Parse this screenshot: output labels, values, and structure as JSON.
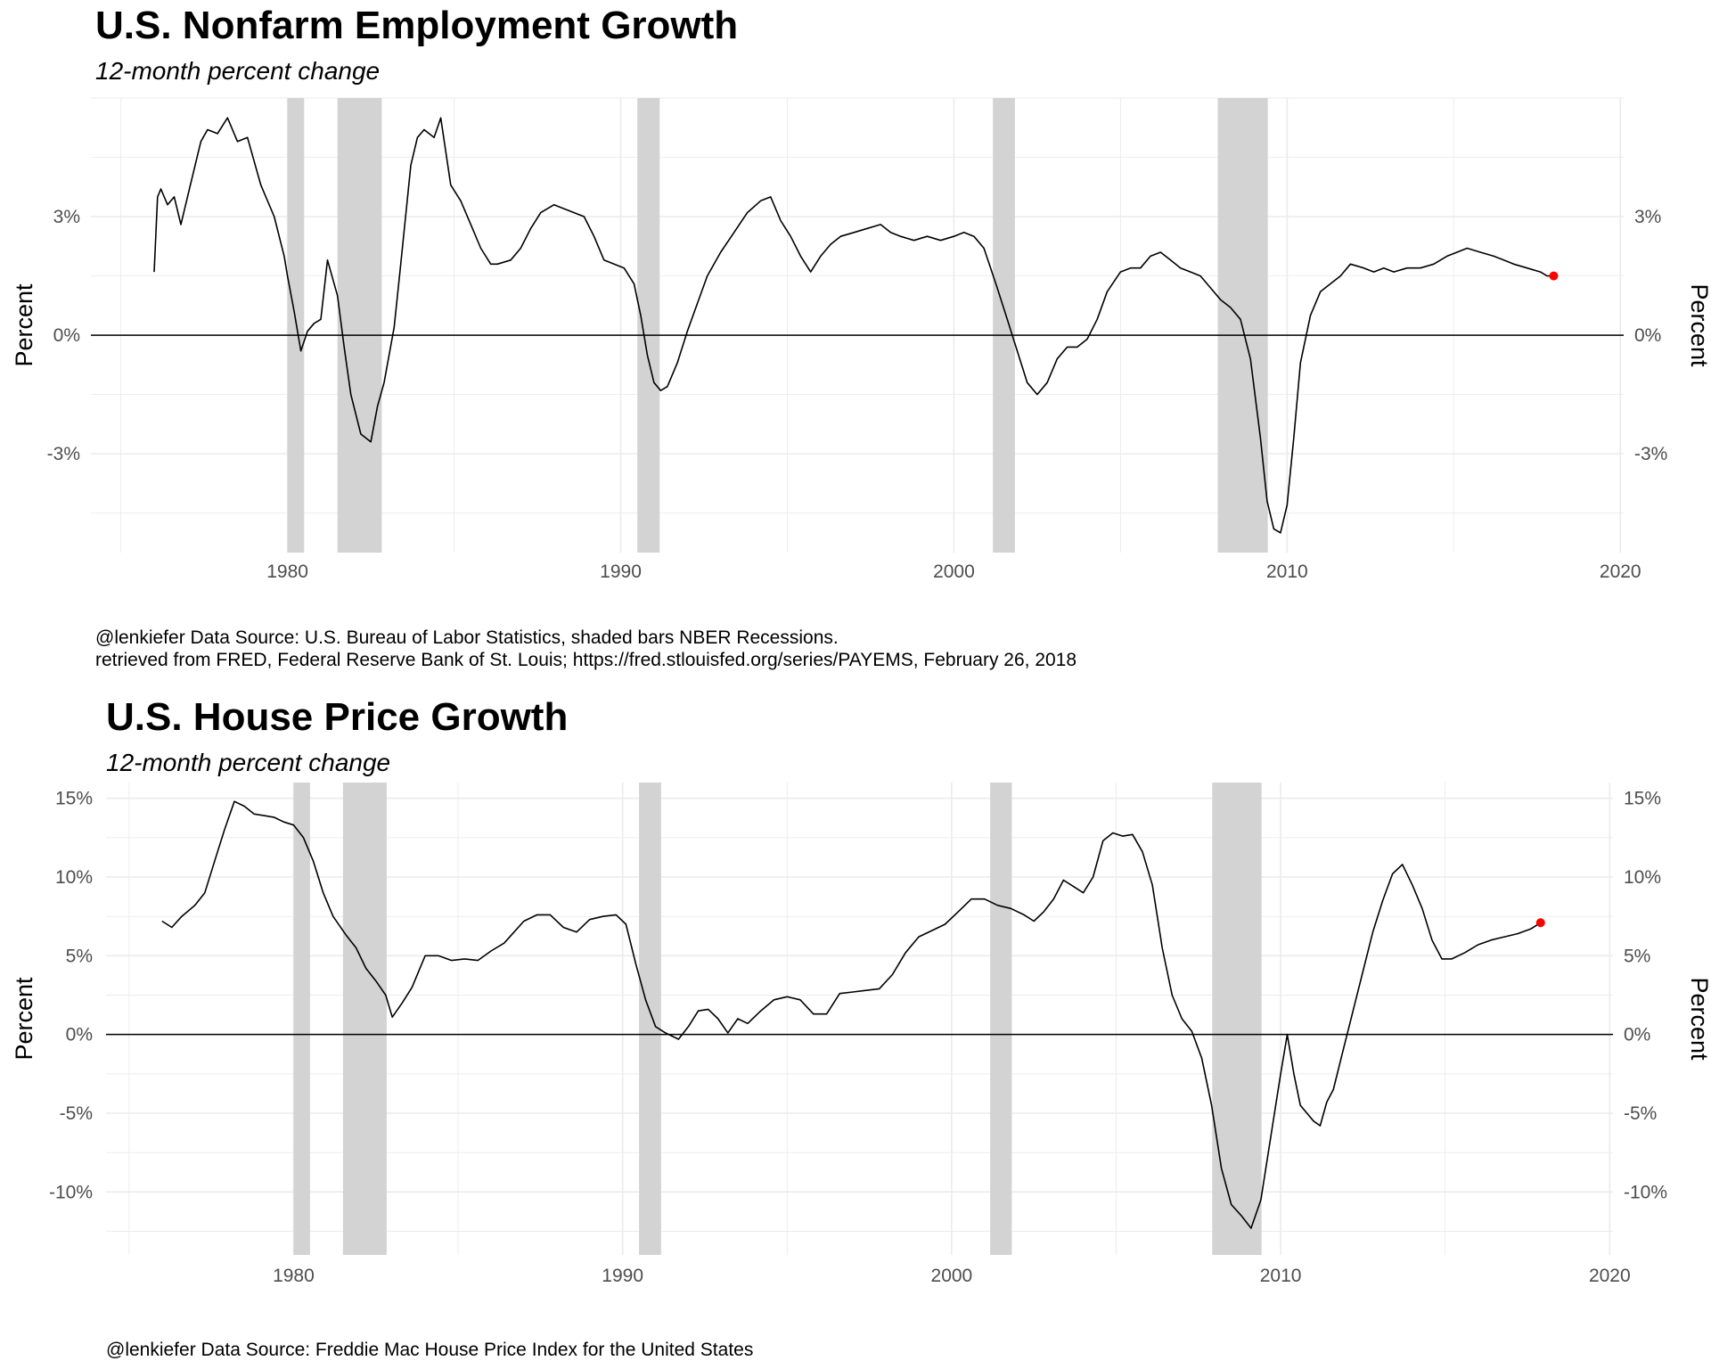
{
  "charts": [
    {
      "title": "U.S. Nonfarm Employment Growth",
      "subtitle": "12-month percent change",
      "ylabel_left": "Percent",
      "ylabel_right": "Percent",
      "caption_lines": [
        "@lenkiefer Data Source: U.S. Bureau of Labor Statistics, shaded bars NBER Recessions.",
        "retrieved from FRED, Federal Reserve Bank of St. Louis; https://fred.stlouisfed.org/series/PAYEMS, February 26, 2018"
      ]
    },
    {
      "title": "U.S. House Price Growth",
      "subtitle": "12-month percent change",
      "ylabel_left": "Percent",
      "ylabel_right": "Percent",
      "caption_lines": [
        "@lenkiefer Data Source: Freddie Mac House Price Index for the United States"
      ]
    }
  ],
  "colors": {
    "line": "#000000",
    "recession": "#d3d3d3",
    "last_point": "#ff0000",
    "grid": "#ebebeb",
    "zero_line": "#000000"
  },
  "chart_data": [
    {
      "type": "line",
      "title": "U.S. Nonfarm Employment Growth",
      "subtitle": "12-month percent change",
      "ylabel": "Percent",
      "x_ticks": [
        1980,
        1990,
        2000,
        2010,
        2020
      ],
      "x_tick_labels": [
        "1980",
        "1990",
        "2000",
        "2010",
        "2020"
      ],
      "y_ticks": [
        -3,
        0,
        3
      ],
      "y_tick_labels": [
        "-3%",
        "0%",
        "3%"
      ],
      "xlim": [
        1974.1,
        2020.1
      ],
      "ylim": [
        -5.5,
        6.0
      ],
      "axes_both_sides": true,
      "grid": true,
      "recessions": [
        [
          1980.0,
          1980.5
        ],
        [
          1981.5,
          1982.83
        ],
        [
          1990.5,
          1991.17
        ],
        [
          2001.17,
          2001.83
        ],
        [
          2007.92,
          2009.42
        ]
      ],
      "series": [
        {
          "x": [
            1976.0,
            1976.1,
            1976.2,
            1976.4,
            1976.6,
            1976.8,
            1977.0,
            1977.2,
            1977.4,
            1977.6,
            1977.9,
            1978.2,
            1978.5,
            1978.8,
            1979.2,
            1979.6,
            1979.9,
            1980.0,
            1980.2,
            1980.4,
            1980.6,
            1980.8,
            1981.0,
            1981.2,
            1981.5,
            1981.7,
            1981.9,
            1982.2,
            1982.5,
            1982.7,
            1982.9,
            1983.2,
            1983.4,
            1983.7,
            1983.9,
            1984.1,
            1984.4,
            1984.6,
            1984.9,
            1985.2,
            1985.5,
            1985.8,
            1986.1,
            1986.3,
            1986.7,
            1987.0,
            1987.3,
            1987.6,
            1988.0,
            1988.3,
            1988.6,
            1988.9,
            1989.2,
            1989.5,
            1989.8,
            1990.1,
            1990.4,
            1990.6,
            1990.8,
            1991.0,
            1991.2,
            1991.4,
            1991.7,
            1992.0,
            1992.3,
            1992.6,
            1993.0,
            1993.4,
            1993.8,
            1994.2,
            1994.5,
            1994.8,
            1995.1,
            1995.4,
            1995.7,
            1996.0,
            1996.3,
            1996.6,
            1997.0,
            1997.4,
            1997.8,
            1998.1,
            1998.4,
            1998.8,
            1999.2,
            1999.6,
            2000.0,
            2000.3,
            2000.6,
            2000.9,
            2001.1,
            2001.3,
            2001.6,
            2001.9,
            2002.2,
            2002.5,
            2002.8,
            2003.1,
            2003.4,
            2003.7,
            2004.0,
            2004.3,
            2004.6,
            2005.0,
            2005.3,
            2005.6,
            2005.9,
            2006.2,
            2006.5,
            2006.8,
            2007.1,
            2007.4,
            2007.7,
            2008.0,
            2008.3,
            2008.6,
            2008.9,
            2009.2,
            2009.4,
            2009.6,
            2009.8,
            2010.0,
            2010.2,
            2010.4,
            2010.7,
            2011.0,
            2011.3,
            2011.6,
            2011.9,
            2012.3,
            2012.6,
            2012.9,
            2013.2,
            2013.6,
            2014.0,
            2014.4,
            2014.8,
            2015.1,
            2015.4,
            2015.8,
            2016.2,
            2016.5,
            2016.8,
            2017.2,
            2017.6,
            2017.8,
            2018.0
          ],
          "values": [
            1.6,
            3.5,
            3.7,
            3.3,
            3.5,
            2.8,
            3.5,
            4.2,
            4.9,
            5.2,
            5.1,
            5.5,
            4.9,
            5.0,
            3.8,
            3.0,
            2.0,
            1.5,
            0.6,
            -0.4,
            0.1,
            0.3,
            0.4,
            1.9,
            1.0,
            -0.3,
            -1.5,
            -2.5,
            -2.7,
            -1.8,
            -1.2,
            0.2,
            1.8,
            4.3,
            5.0,
            5.2,
            5.0,
            5.5,
            3.8,
            3.4,
            2.8,
            2.2,
            1.8,
            1.8,
            1.9,
            2.2,
            2.7,
            3.1,
            3.3,
            3.2,
            3.1,
            3.0,
            2.5,
            1.9,
            1.8,
            1.7,
            1.3,
            0.5,
            -0.5,
            -1.2,
            -1.4,
            -1.3,
            -0.7,
            0.1,
            0.8,
            1.5,
            2.1,
            2.6,
            3.1,
            3.4,
            3.5,
            2.9,
            2.5,
            2.0,
            1.6,
            2.0,
            2.3,
            2.5,
            2.6,
            2.7,
            2.8,
            2.6,
            2.5,
            2.4,
            2.5,
            2.4,
            2.5,
            2.6,
            2.5,
            2.2,
            1.7,
            1.2,
            0.4,
            -0.4,
            -1.2,
            -1.5,
            -1.2,
            -0.6,
            -0.3,
            -0.3,
            -0.1,
            0.4,
            1.1,
            1.6,
            1.7,
            1.7,
            2.0,
            2.1,
            1.9,
            1.7,
            1.6,
            1.5,
            1.2,
            0.9,
            0.7,
            0.4,
            -0.6,
            -2.6,
            -4.2,
            -4.9,
            -5.0,
            -4.3,
            -2.6,
            -0.7,
            0.5,
            1.1,
            1.3,
            1.5,
            1.8,
            1.7,
            1.6,
            1.7,
            1.6,
            1.7,
            1.7,
            1.8,
            2.0,
            2.1,
            2.2,
            2.1,
            2.0,
            1.9,
            1.8,
            1.7,
            1.6,
            1.5,
            1.5
          ]
        }
      ],
      "last_point": {
        "x": 2018.0,
        "y": 1.5
      }
    },
    {
      "type": "line",
      "title": "U.S. House Price Growth",
      "subtitle": "12-month percent change",
      "ylabel": "Percent",
      "x_ticks": [
        1980,
        1990,
        2000,
        2010,
        2020
      ],
      "x_tick_labels": [
        "1980",
        "1990",
        "2000",
        "2010",
        "2020"
      ],
      "y_ticks": [
        -10,
        -5,
        0,
        5,
        10,
        15
      ],
      "y_tick_labels": [
        "-10%",
        "-5%",
        "0%",
        "5%",
        "10%",
        "15%"
      ],
      "xlim": [
        1974.3,
        2020.1
      ],
      "ylim": [
        -14.0,
        16.0
      ],
      "axes_both_sides": true,
      "grid": true,
      "recessions": [
        [
          1980.0,
          1980.5
        ],
        [
          1981.5,
          1982.83
        ],
        [
          1990.5,
          1991.17
        ],
        [
          2001.17,
          2001.83
        ],
        [
          2007.92,
          2009.42
        ]
      ],
      "series": [
        {
          "x": [
            1976.0,
            1976.3,
            1976.6,
            1977.0,
            1977.3,
            1977.6,
            1977.9,
            1978.2,
            1978.5,
            1978.8,
            1979.1,
            1979.4,
            1979.7,
            1980.0,
            1980.3,
            1980.6,
            1980.9,
            1981.2,
            1981.6,
            1981.9,
            1982.2,
            1982.5,
            1982.8,
            1983.0,
            1983.3,
            1983.6,
            1984.0,
            1984.4,
            1984.8,
            1985.2,
            1985.6,
            1986.0,
            1986.4,
            1986.7,
            1987.0,
            1987.4,
            1987.8,
            1988.2,
            1988.6,
            1989.0,
            1989.4,
            1989.8,
            1990.1,
            1990.4,
            1990.7,
            1991.0,
            1991.3,
            1991.7,
            1992.0,
            1992.3,
            1992.6,
            1992.9,
            1993.2,
            1993.5,
            1993.8,
            1994.2,
            1994.6,
            1995.0,
            1995.4,
            1995.8,
            1996.2,
            1996.6,
            1997.0,
            1997.4,
            1997.8,
            1998.2,
            1998.6,
            1999.0,
            1999.4,
            1999.8,
            2000.2,
            2000.6,
            2001.0,
            2001.4,
            2001.8,
            2002.2,
            2002.5,
            2002.8,
            2003.1,
            2003.4,
            2003.7,
            2004.0,
            2004.3,
            2004.6,
            2004.9,
            2005.2,
            2005.5,
            2005.8,
            2006.1,
            2006.4,
            2006.7,
            2007.0,
            2007.3,
            2007.6,
            2007.9,
            2008.2,
            2008.5,
            2008.8,
            2009.1,
            2009.4,
            2009.7,
            2010.0,
            2010.2,
            2010.4,
            2010.6,
            2010.8,
            2011.0,
            2011.2,
            2011.4,
            2011.6,
            2011.9,
            2012.2,
            2012.5,
            2012.8,
            2013.1,
            2013.4,
            2013.7,
            2014.0,
            2014.3,
            2014.6,
            2014.9,
            2015.2,
            2015.6,
            2016.0,
            2016.4,
            2016.8,
            2017.2,
            2017.6,
            2017.9
          ],
          "values": [
            7.2,
            6.8,
            7.5,
            8.2,
            9.0,
            11.0,
            13.0,
            14.8,
            14.5,
            14.0,
            13.9,
            13.8,
            13.5,
            13.3,
            12.5,
            11.0,
            9.0,
            7.5,
            6.3,
            5.5,
            4.2,
            3.4,
            2.5,
            1.1,
            2.0,
            3.0,
            5.0,
            5.0,
            4.7,
            4.8,
            4.7,
            5.3,
            5.8,
            6.5,
            7.2,
            7.6,
            7.6,
            6.8,
            6.5,
            7.3,
            7.5,
            7.6,
            7.0,
            4.5,
            2.2,
            0.5,
            0.1,
            -0.3,
            0.5,
            1.5,
            1.6,
            1.0,
            0.1,
            1.0,
            0.7,
            1.5,
            2.2,
            2.4,
            2.2,
            1.3,
            1.3,
            2.6,
            2.7,
            2.8,
            2.9,
            3.8,
            5.2,
            6.2,
            6.6,
            7.0,
            7.8,
            8.6,
            8.6,
            8.2,
            8.0,
            7.6,
            7.2,
            7.8,
            8.6,
            9.8,
            9.4,
            9.0,
            10.0,
            12.3,
            12.8,
            12.6,
            12.7,
            11.6,
            9.5,
            5.5,
            2.5,
            1.0,
            0.2,
            -1.5,
            -4.5,
            -8.5,
            -10.8,
            -11.5,
            -12.3,
            -10.5,
            -6.5,
            -2.5,
            0.0,
            -2.5,
            -4.5,
            -5.0,
            -5.5,
            -5.8,
            -4.3,
            -3.5,
            -1.0,
            1.5,
            4.0,
            6.5,
            8.5,
            10.2,
            10.8,
            9.5,
            8.0,
            6.0,
            4.8,
            4.8,
            5.2,
            5.7,
            6.0,
            6.2,
            6.4,
            6.7,
            7.1
          ]
        }
      ],
      "last_point": {
        "x": 2017.9,
        "y": 7.1
      }
    }
  ]
}
